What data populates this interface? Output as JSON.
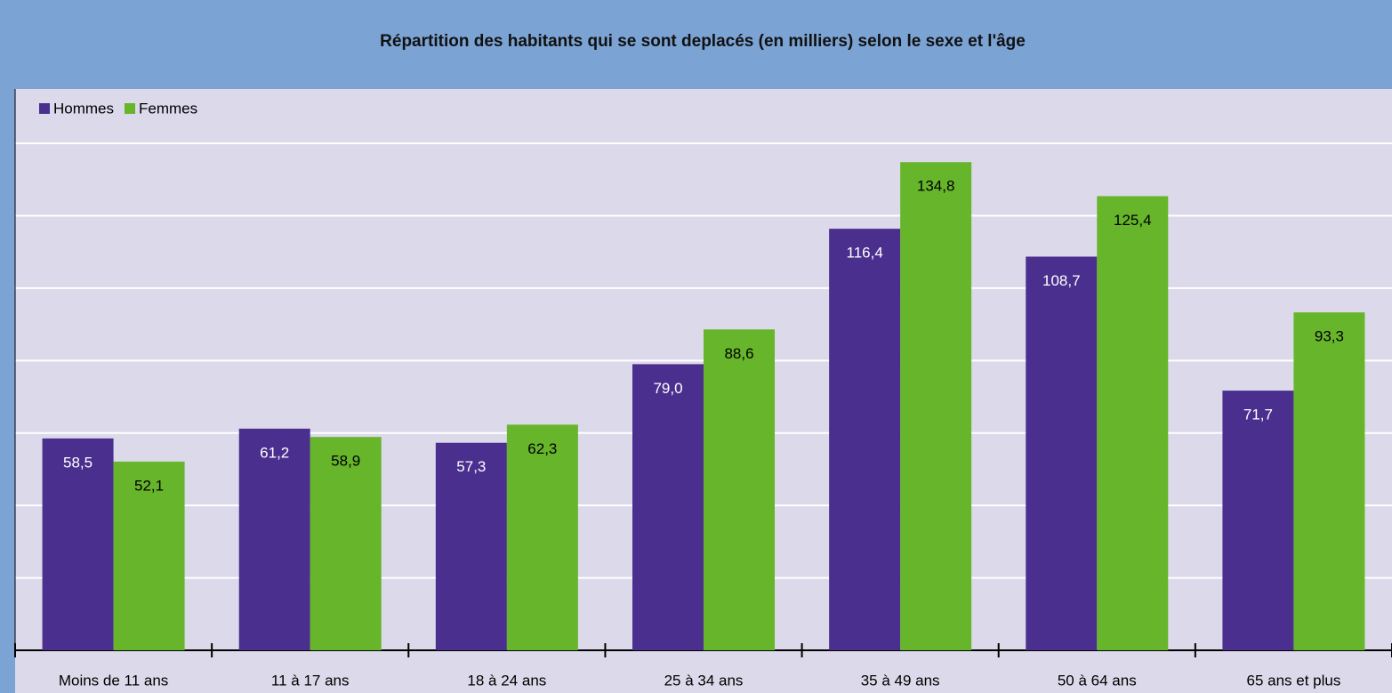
{
  "chart_data": {
    "type": "bar",
    "title": "Répartition des habitants qui se sont deplacés (en milliers) selon le sexe et l'âge",
    "categories": [
      "Moins de 11 ans",
      "11 à 17 ans",
      "18 à 24 ans",
      "25 à 34 ans",
      "35 à 49 ans",
      "50 à 64 ans",
      "65 ans et plus"
    ],
    "series": [
      {
        "name": "Hommes",
        "color": "#4a2f8f",
        "values": [
          58.5,
          61.2,
          57.3,
          79.0,
          116.4,
          108.7,
          71.7
        ],
        "value_labels": [
          "58,5",
          "61,2",
          "57,3",
          "79,0",
          "116,4",
          "108,7",
          "71,7"
        ]
      },
      {
        "name": "Femmes",
        "color": "#66b52a",
        "values": [
          52.1,
          58.9,
          62.3,
          88.6,
          134.8,
          125.4,
          93.3
        ],
        "value_labels": [
          "52,1",
          "58,9",
          "62,3",
          "88,6",
          "134,8",
          "125,4",
          "93,3"
        ]
      }
    ],
    "ylim": [
      0,
      155
    ],
    "yticks": [
      0,
      20,
      40,
      60,
      80,
      100,
      120,
      140
    ],
    "grid": true,
    "legend": "top-left"
  }
}
